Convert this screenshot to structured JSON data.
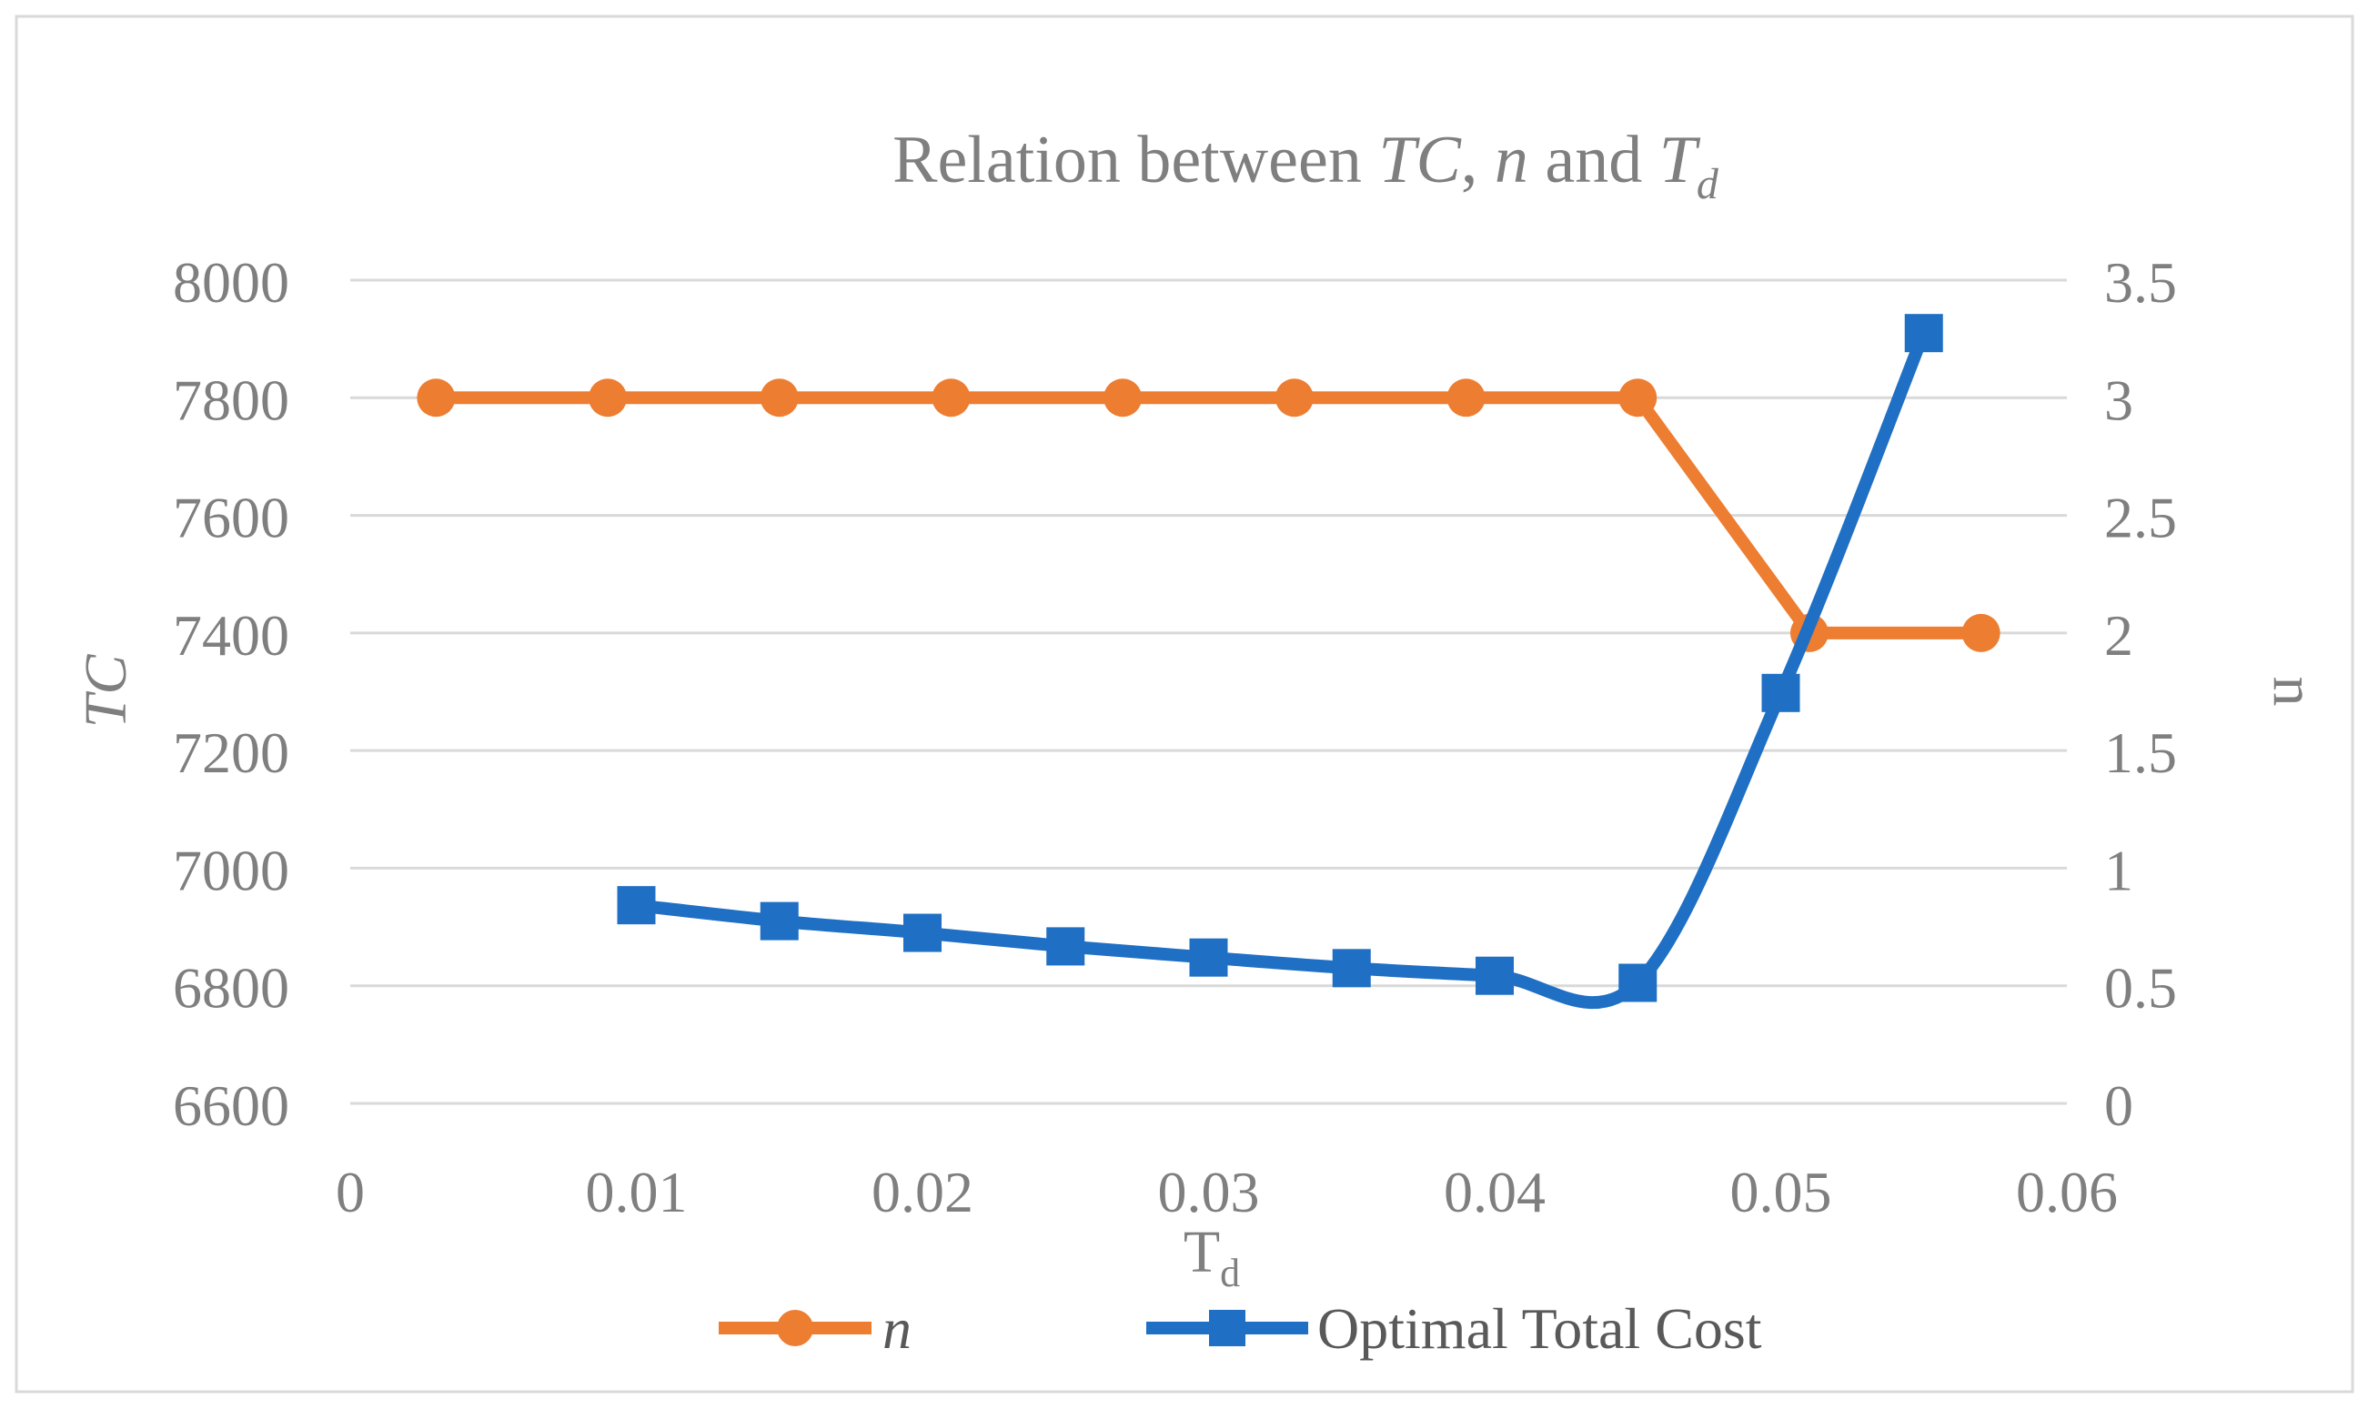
{
  "chart_data": {
    "type": "line",
    "title": {
      "prefix": "Relation between ",
      "tc": "TC",
      "comma": ", ",
      "n": "n",
      "and": " and ",
      "td": "T",
      "td_sub": "d"
    },
    "xlabel": {
      "main": "T",
      "sub": "d"
    },
    "ylabel_left": "TC",
    "ylabel_right": "n",
    "xlim": [
      0,
      0.06
    ],
    "ylim_left": [
      6600,
      8000
    ],
    "ylim_right": [
      0,
      3.5
    ],
    "x_ticks": [
      "0",
      "0.01",
      "0.02",
      "0.03",
      "0.04",
      "0.05",
      "0.06"
    ],
    "y_left_ticks": [
      "6600",
      "6800",
      "7000",
      "7200",
      "7400",
      "7600",
      "7800",
      "8000"
    ],
    "y_right_ticks": [
      "0",
      "0.5",
      "1",
      "1.5",
      "2",
      "2.5",
      "3",
      "3.5"
    ],
    "grid": true,
    "legend_position": "bottom",
    "series": [
      {
        "name": "n",
        "axis": "right",
        "color": "#ed7d31",
        "marker": "circle",
        "x": [
          0.003,
          0.009,
          0.015,
          0.021,
          0.027,
          0.033,
          0.039,
          0.045,
          0.051,
          0.057
        ],
        "values": [
          3,
          3,
          3,
          3,
          3,
          3,
          3,
          3,
          2,
          2
        ]
      },
      {
        "name": "Optimal Total Cost",
        "axis": "left",
        "color": "#1f6fc4",
        "marker": "square",
        "smooth": true,
        "x": [
          0.01,
          0.015,
          0.02,
          0.025,
          0.03,
          0.035,
          0.04,
          0.045,
          0.05,
          0.055
        ],
        "values": [
          6937,
          6910,
          6890,
          6867,
          6848,
          6830,
          6817,
          6805,
          7298,
          7910
        ]
      }
    ]
  }
}
